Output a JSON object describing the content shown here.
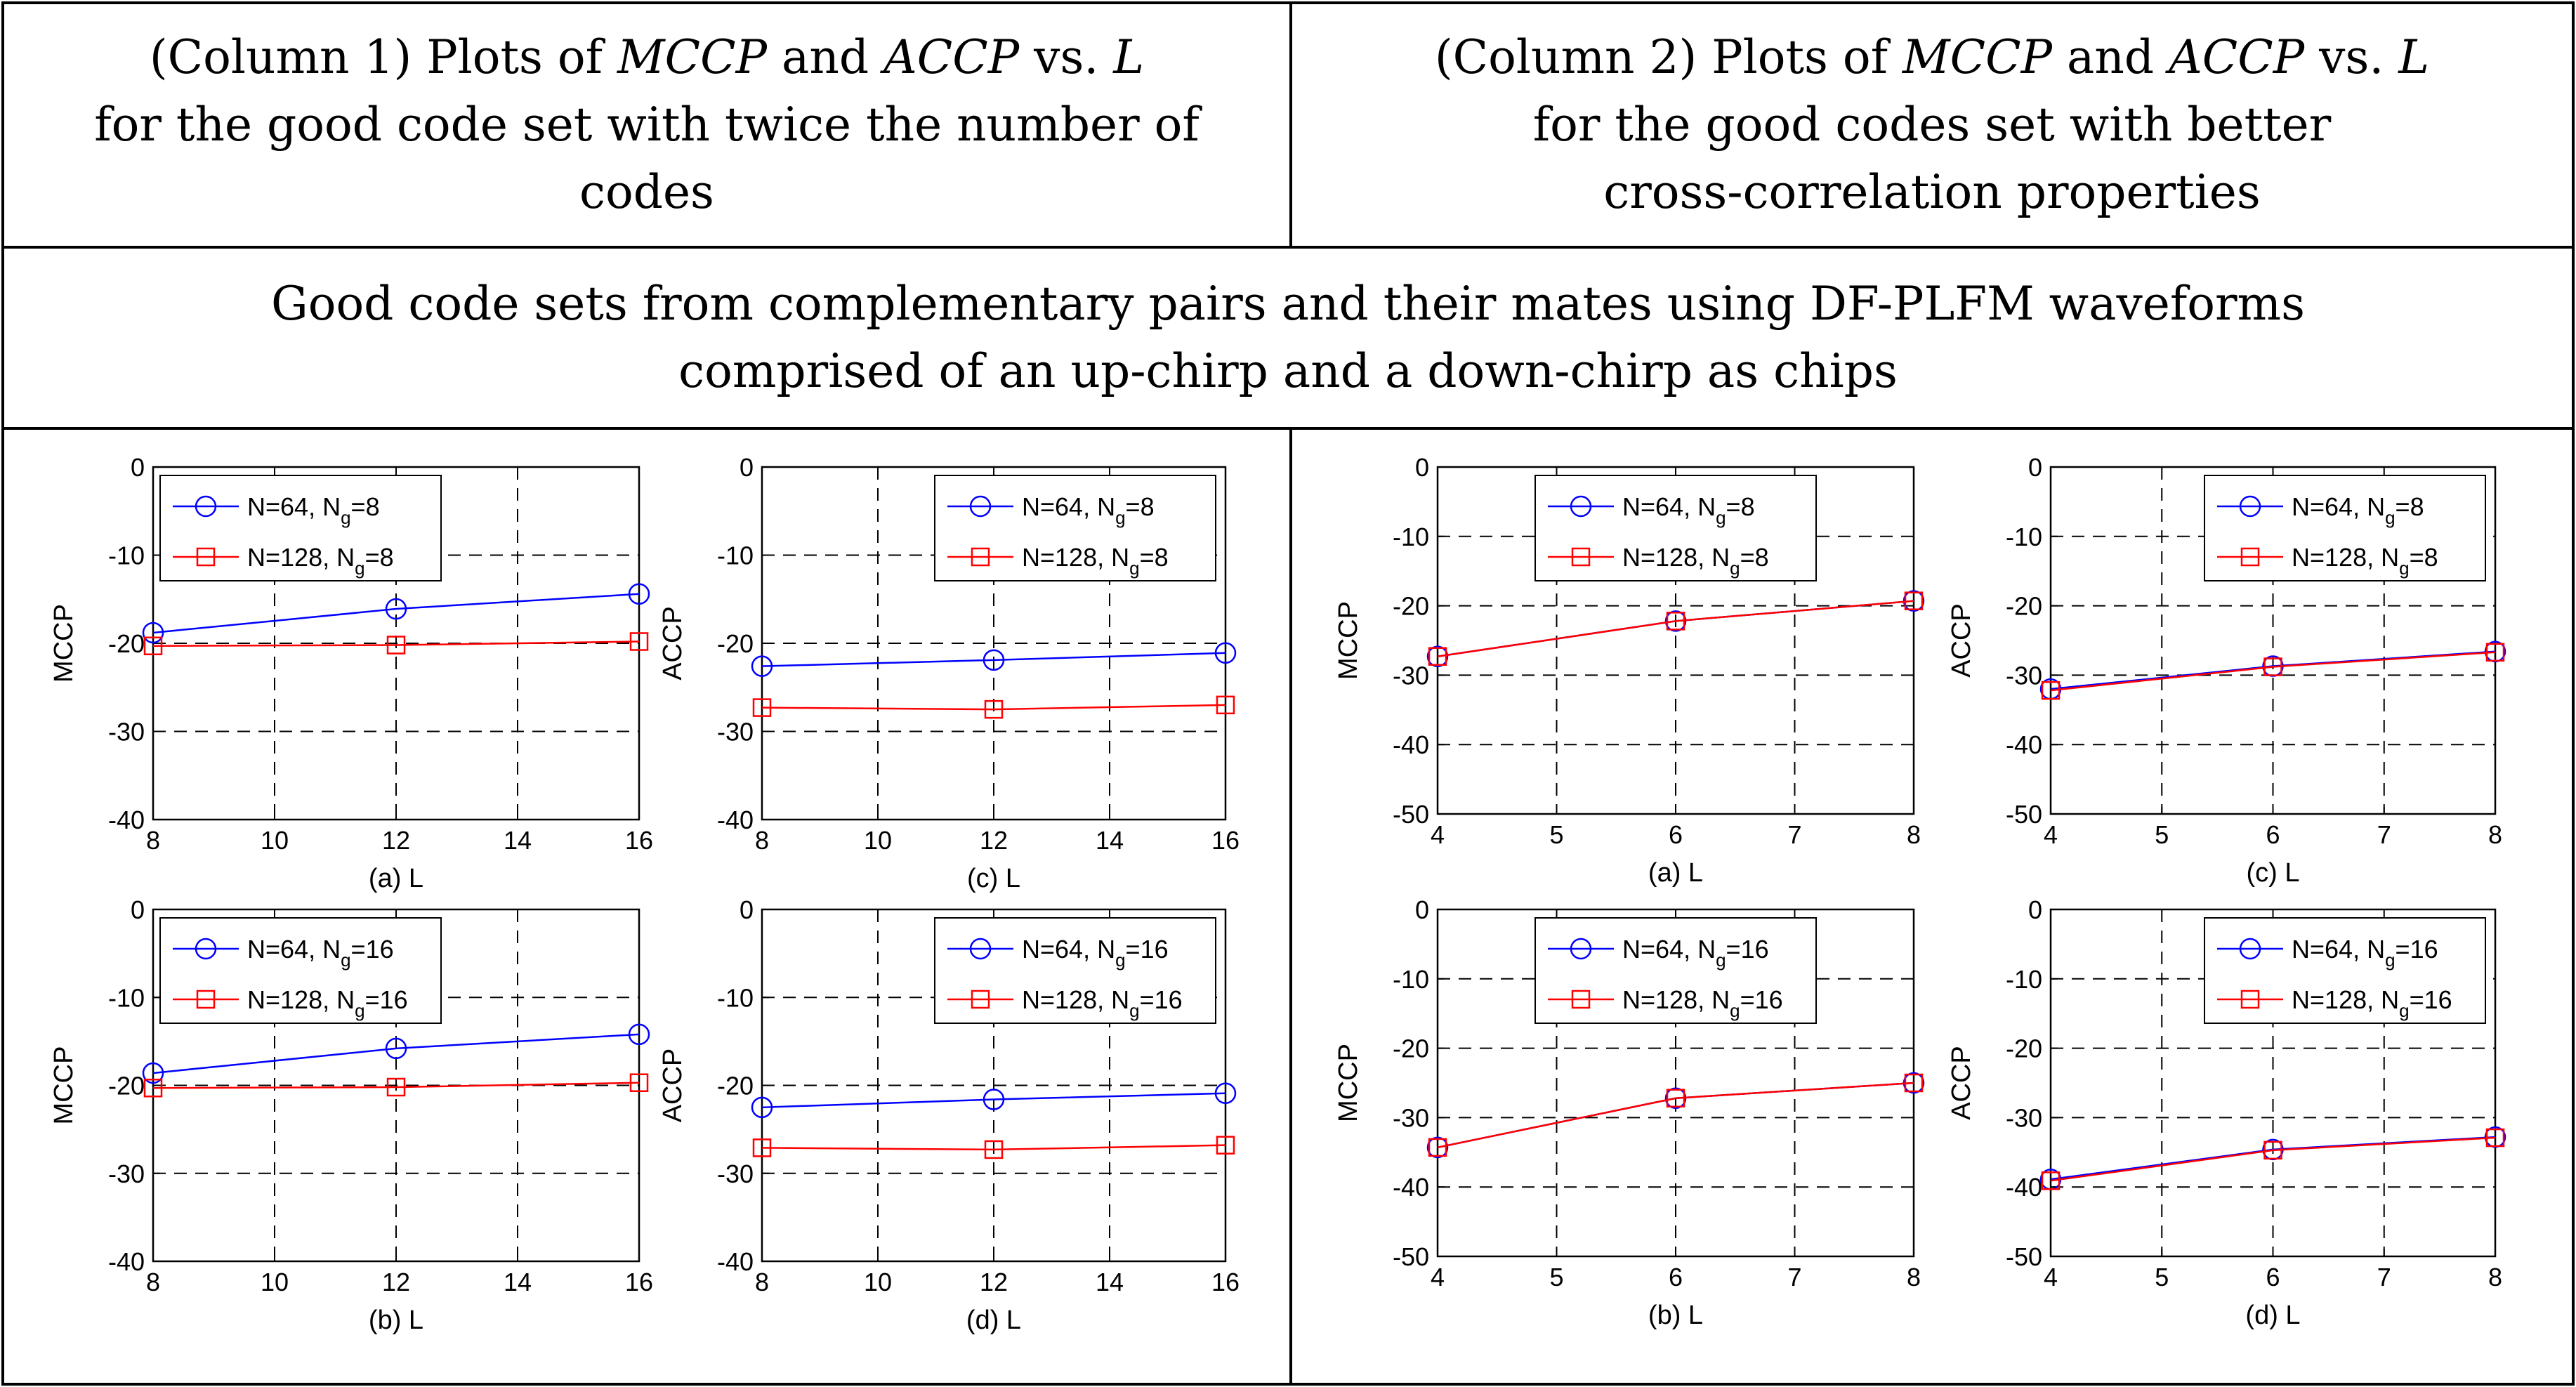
{
  "header": {
    "col1": {
      "prefix": "(Column 1) Plots of ",
      "var1": "MCCP",
      "and": " and ",
      "var2": "ACCP",
      "vs": " vs. ",
      "var3": "L",
      "line2": "for the good code set with twice the number of",
      "line3": "codes"
    },
    "col2": {
      "prefix": "(Column 2) Plots of ",
      "var1": "MCCP",
      "and": " and ",
      "var2": "ACCP",
      "vs": " vs. ",
      "var3": "L",
      "line2": "for the good codes set with better",
      "line3": "cross-correlation properties"
    },
    "title_line1": "Good code sets from complementary pairs and their mates using DF-PLFM waveforms",
    "title_line2": "comprised of an up-chirp and a down-chirp as chips"
  },
  "colors": {
    "blue": "#0000ff",
    "red": "#ff0000",
    "grid": "#000000",
    "border": "#000000"
  },
  "chart_data": [
    {
      "type": "line",
      "group": "column1",
      "xlabel": "(a) L",
      "ylabel": "MCCP",
      "x": [
        8,
        12,
        16
      ],
      "xlim": [
        8,
        16
      ],
      "ylim": [
        -40,
        0
      ],
      "xticks": [
        8,
        10,
        12,
        14,
        16
      ],
      "yticks": [
        0,
        -10,
        -20,
        -30,
        -40
      ],
      "legend_loc": "top-left",
      "series": [
        {
          "name": "N=64, N_g=8",
          "label_main": "N=64, N",
          "label_sub": "g",
          "label_tail": "=8",
          "marker": "circle",
          "color": "#0000ff",
          "values": [
            -18.8,
            -16.1,
            -14.4
          ]
        },
        {
          "name": "N=128, N_g=8",
          "label_main": "N=128, N",
          "label_sub": "g",
          "label_tail": "=8",
          "marker": "square",
          "color": "#ff0000",
          "values": [
            -20.3,
            -20.2,
            -19.8
          ]
        }
      ]
    },
    {
      "type": "line",
      "group": "column1",
      "xlabel": "(c) L",
      "ylabel": "ACCP",
      "x": [
        8,
        12,
        16
      ],
      "xlim": [
        8,
        16
      ],
      "ylim": [
        -40,
        0
      ],
      "xticks": [
        8,
        10,
        12,
        14,
        16
      ],
      "yticks": [
        0,
        -10,
        -20,
        -30,
        -40
      ],
      "legend_loc": "top-right",
      "series": [
        {
          "name": "N=64, N_g=8",
          "label_main": "N=64, N",
          "label_sub": "g",
          "label_tail": "=8",
          "marker": "circle",
          "color": "#0000ff",
          "values": [
            -22.6,
            -21.9,
            -21.1
          ]
        },
        {
          "name": "N=128, N_g=8",
          "label_main": "N=128, N",
          "label_sub": "g",
          "label_tail": "=8",
          "marker": "square",
          "color": "#ff0000",
          "values": [
            -27.3,
            -27.5,
            -27.0
          ]
        }
      ]
    },
    {
      "type": "line",
      "group": "column1",
      "xlabel": "(b) L",
      "ylabel": "MCCP",
      "x": [
        8,
        12,
        16
      ],
      "xlim": [
        8,
        16
      ],
      "ylim": [
        -40,
        0
      ],
      "xticks": [
        8,
        10,
        12,
        14,
        16
      ],
      "yticks": [
        0,
        -10,
        -20,
        -30,
        -40
      ],
      "legend_loc": "top-left",
      "series": [
        {
          "name": "N=64, N_g=16",
          "label_main": "N=64, N",
          "label_sub": "g",
          "label_tail": "=16",
          "marker": "circle",
          "color": "#0000ff",
          "values": [
            -18.6,
            -15.8,
            -14.2
          ]
        },
        {
          "name": "N=128, N_g=16",
          "label_main": "N=128, N",
          "label_sub": "g",
          "label_tail": "=16",
          "marker": "square",
          "color": "#ff0000",
          "values": [
            -20.3,
            -20.2,
            -19.7
          ]
        }
      ]
    },
    {
      "type": "line",
      "group": "column1",
      "xlabel": "(d) L",
      "ylabel": "ACCP",
      "x": [
        8,
        12,
        16
      ],
      "xlim": [
        8,
        16
      ],
      "ylim": [
        -40,
        0
      ],
      "xticks": [
        8,
        10,
        12,
        14,
        16
      ],
      "yticks": [
        0,
        -10,
        -20,
        -30,
        -40
      ],
      "legend_loc": "top-right",
      "series": [
        {
          "name": "N=64, N_g=16",
          "label_main": "N=64, N",
          "label_sub": "g",
          "label_tail": "=16",
          "marker": "circle",
          "color": "#0000ff",
          "values": [
            -22.5,
            -21.6,
            -20.9
          ]
        },
        {
          "name": "N=128, N_g=16",
          "label_main": "N=128, N",
          "label_sub": "g",
          "label_tail": "=16",
          "marker": "square",
          "color": "#ff0000",
          "values": [
            -27.1,
            -27.3,
            -26.8
          ]
        }
      ]
    },
    {
      "type": "line",
      "group": "column2",
      "xlabel": "(a) L",
      "ylabel": "MCCP",
      "x": [
        4,
        6,
        8
      ],
      "xlim": [
        4,
        8
      ],
      "ylim": [
        -50,
        0
      ],
      "xticks": [
        4,
        5,
        6,
        7,
        8
      ],
      "yticks": [
        0,
        -10,
        -20,
        -30,
        -40,
        -50
      ],
      "legend_loc": "top-center",
      "series": [
        {
          "name": "N=64, N_g=8",
          "label_main": "N=64, N",
          "label_sub": "g",
          "label_tail": "=8",
          "marker": "circle",
          "color": "#0000ff",
          "values": [
            -27.3,
            -22.2,
            -19.3
          ]
        },
        {
          "name": "N=128, N_g=8",
          "label_main": "N=128, N",
          "label_sub": "g",
          "label_tail": "=8",
          "marker": "square",
          "color": "#ff0000",
          "values": [
            -27.3,
            -22.2,
            -19.3
          ]
        }
      ]
    },
    {
      "type": "line",
      "group": "column2",
      "xlabel": "(c) L",
      "ylabel": "ACCP",
      "x": [
        4,
        6,
        8
      ],
      "xlim": [
        4,
        8
      ],
      "ylim": [
        -50,
        0
      ],
      "xticks": [
        4,
        5,
        6,
        7,
        8
      ],
      "yticks": [
        0,
        -10,
        -20,
        -30,
        -40,
        -50
      ],
      "legend_loc": "top-right",
      "series": [
        {
          "name": "N=64, N_g=8",
          "label_main": "N=64, N",
          "label_sub": "g",
          "label_tail": "=8",
          "marker": "circle",
          "color": "#0000ff",
          "values": [
            -32.0,
            -28.7,
            -26.6
          ]
        },
        {
          "name": "N=128, N_g=8",
          "label_main": "N=128, N",
          "label_sub": "g",
          "label_tail": "=8",
          "marker": "square",
          "color": "#ff0000",
          "values": [
            -32.2,
            -28.8,
            -26.7
          ]
        }
      ]
    },
    {
      "type": "line",
      "group": "column2",
      "xlabel": "(b) L",
      "ylabel": "MCCP",
      "x": [
        4,
        6,
        8
      ],
      "xlim": [
        4,
        8
      ],
      "ylim": [
        -50,
        0
      ],
      "xticks": [
        4,
        5,
        6,
        7,
        8
      ],
      "yticks": [
        0,
        -10,
        -20,
        -30,
        -40,
        -50
      ],
      "legend_loc": "top-center",
      "series": [
        {
          "name": "N=64, N_g=16",
          "label_main": "N=64, N",
          "label_sub": "g",
          "label_tail": "=16",
          "marker": "circle",
          "color": "#0000ff",
          "values": [
            -34.3,
            -27.2,
            -25.0
          ]
        },
        {
          "name": "N=128, N_g=16",
          "label_main": "N=128, N",
          "label_sub": "g",
          "label_tail": "=16",
          "marker": "square",
          "color": "#ff0000",
          "values": [
            -34.3,
            -27.2,
            -25.0
          ]
        }
      ]
    },
    {
      "type": "line",
      "group": "column2",
      "xlabel": "(d) L",
      "ylabel": "ACCP",
      "x": [
        4,
        6,
        8
      ],
      "xlim": [
        4,
        8
      ],
      "ylim": [
        -50,
        0
      ],
      "xticks": [
        4,
        5,
        6,
        7,
        8
      ],
      "yticks": [
        0,
        -10,
        -20,
        -30,
        -40,
        -50
      ],
      "legend_loc": "top-right",
      "series": [
        {
          "name": "N=64, N_g=16",
          "label_main": "N=64, N",
          "label_sub": "g",
          "label_tail": "=16",
          "marker": "circle",
          "color": "#0000ff",
          "values": [
            -38.9,
            -34.6,
            -32.8
          ]
        },
        {
          "name": "N=128, N_g=16",
          "label_main": "N=128, N",
          "label_sub": "g",
          "label_tail": "=16",
          "marker": "square",
          "color": "#ff0000",
          "values": [
            -39.1,
            -34.7,
            -32.9
          ]
        }
      ]
    }
  ]
}
